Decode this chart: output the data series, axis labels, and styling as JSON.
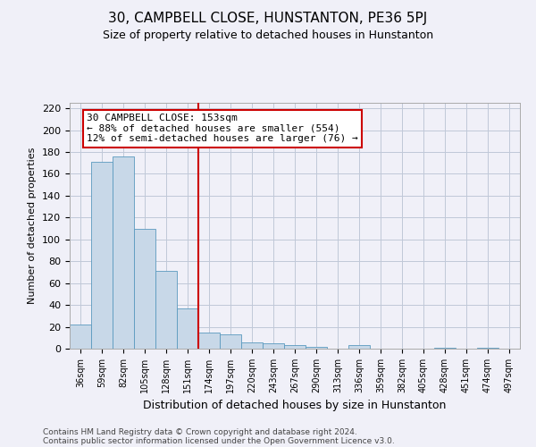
{
  "title": "30, CAMPBELL CLOSE, HUNSTANTON, PE36 5PJ",
  "subtitle": "Size of property relative to detached houses in Hunstanton",
  "xlabel": "Distribution of detached houses by size in Hunstanton",
  "ylabel": "Number of detached properties",
  "categories": [
    "36sqm",
    "59sqm",
    "82sqm",
    "105sqm",
    "128sqm",
    "151sqm",
    "174sqm",
    "197sqm",
    "220sqm",
    "243sqm",
    "267sqm",
    "290sqm",
    "313sqm",
    "336sqm",
    "359sqm",
    "382sqm",
    "405sqm",
    "428sqm",
    "451sqm",
    "474sqm",
    "497sqm"
  ],
  "values": [
    22,
    171,
    176,
    110,
    71,
    37,
    15,
    13,
    6,
    5,
    3,
    2,
    0,
    3,
    0,
    0,
    0,
    1,
    0,
    1,
    0
  ],
  "bar_color": "#c8d8e8",
  "bar_edge_color": "#5a9abf",
  "grid_color": "#c0c8d8",
  "vline_x_index": 5,
  "vline_color": "#cc0000",
  "annotation_text": "30 CAMPBELL CLOSE: 153sqm\n← 88% of detached houses are smaller (554)\n12% of semi-detached houses are larger (76) →",
  "annotation_box_color": "#ffffff",
  "annotation_box_edge_color": "#cc0000",
  "ylim": [
    0,
    225
  ],
  "yticks": [
    0,
    20,
    40,
    60,
    80,
    100,
    120,
    140,
    160,
    180,
    200,
    220
  ],
  "footer_line1": "Contains HM Land Registry data © Crown copyright and database right 2024.",
  "footer_line2": "Contains public sector information licensed under the Open Government Licence v3.0.",
  "bg_color": "#f0f0f8",
  "title_fontsize": 11,
  "subtitle_fontsize": 9,
  "ylabel_fontsize": 8,
  "xlabel_fontsize": 9,
  "tick_fontsize": 8,
  "xtick_fontsize": 7,
  "annotation_fontsize": 8,
  "footer_fontsize": 6.5
}
